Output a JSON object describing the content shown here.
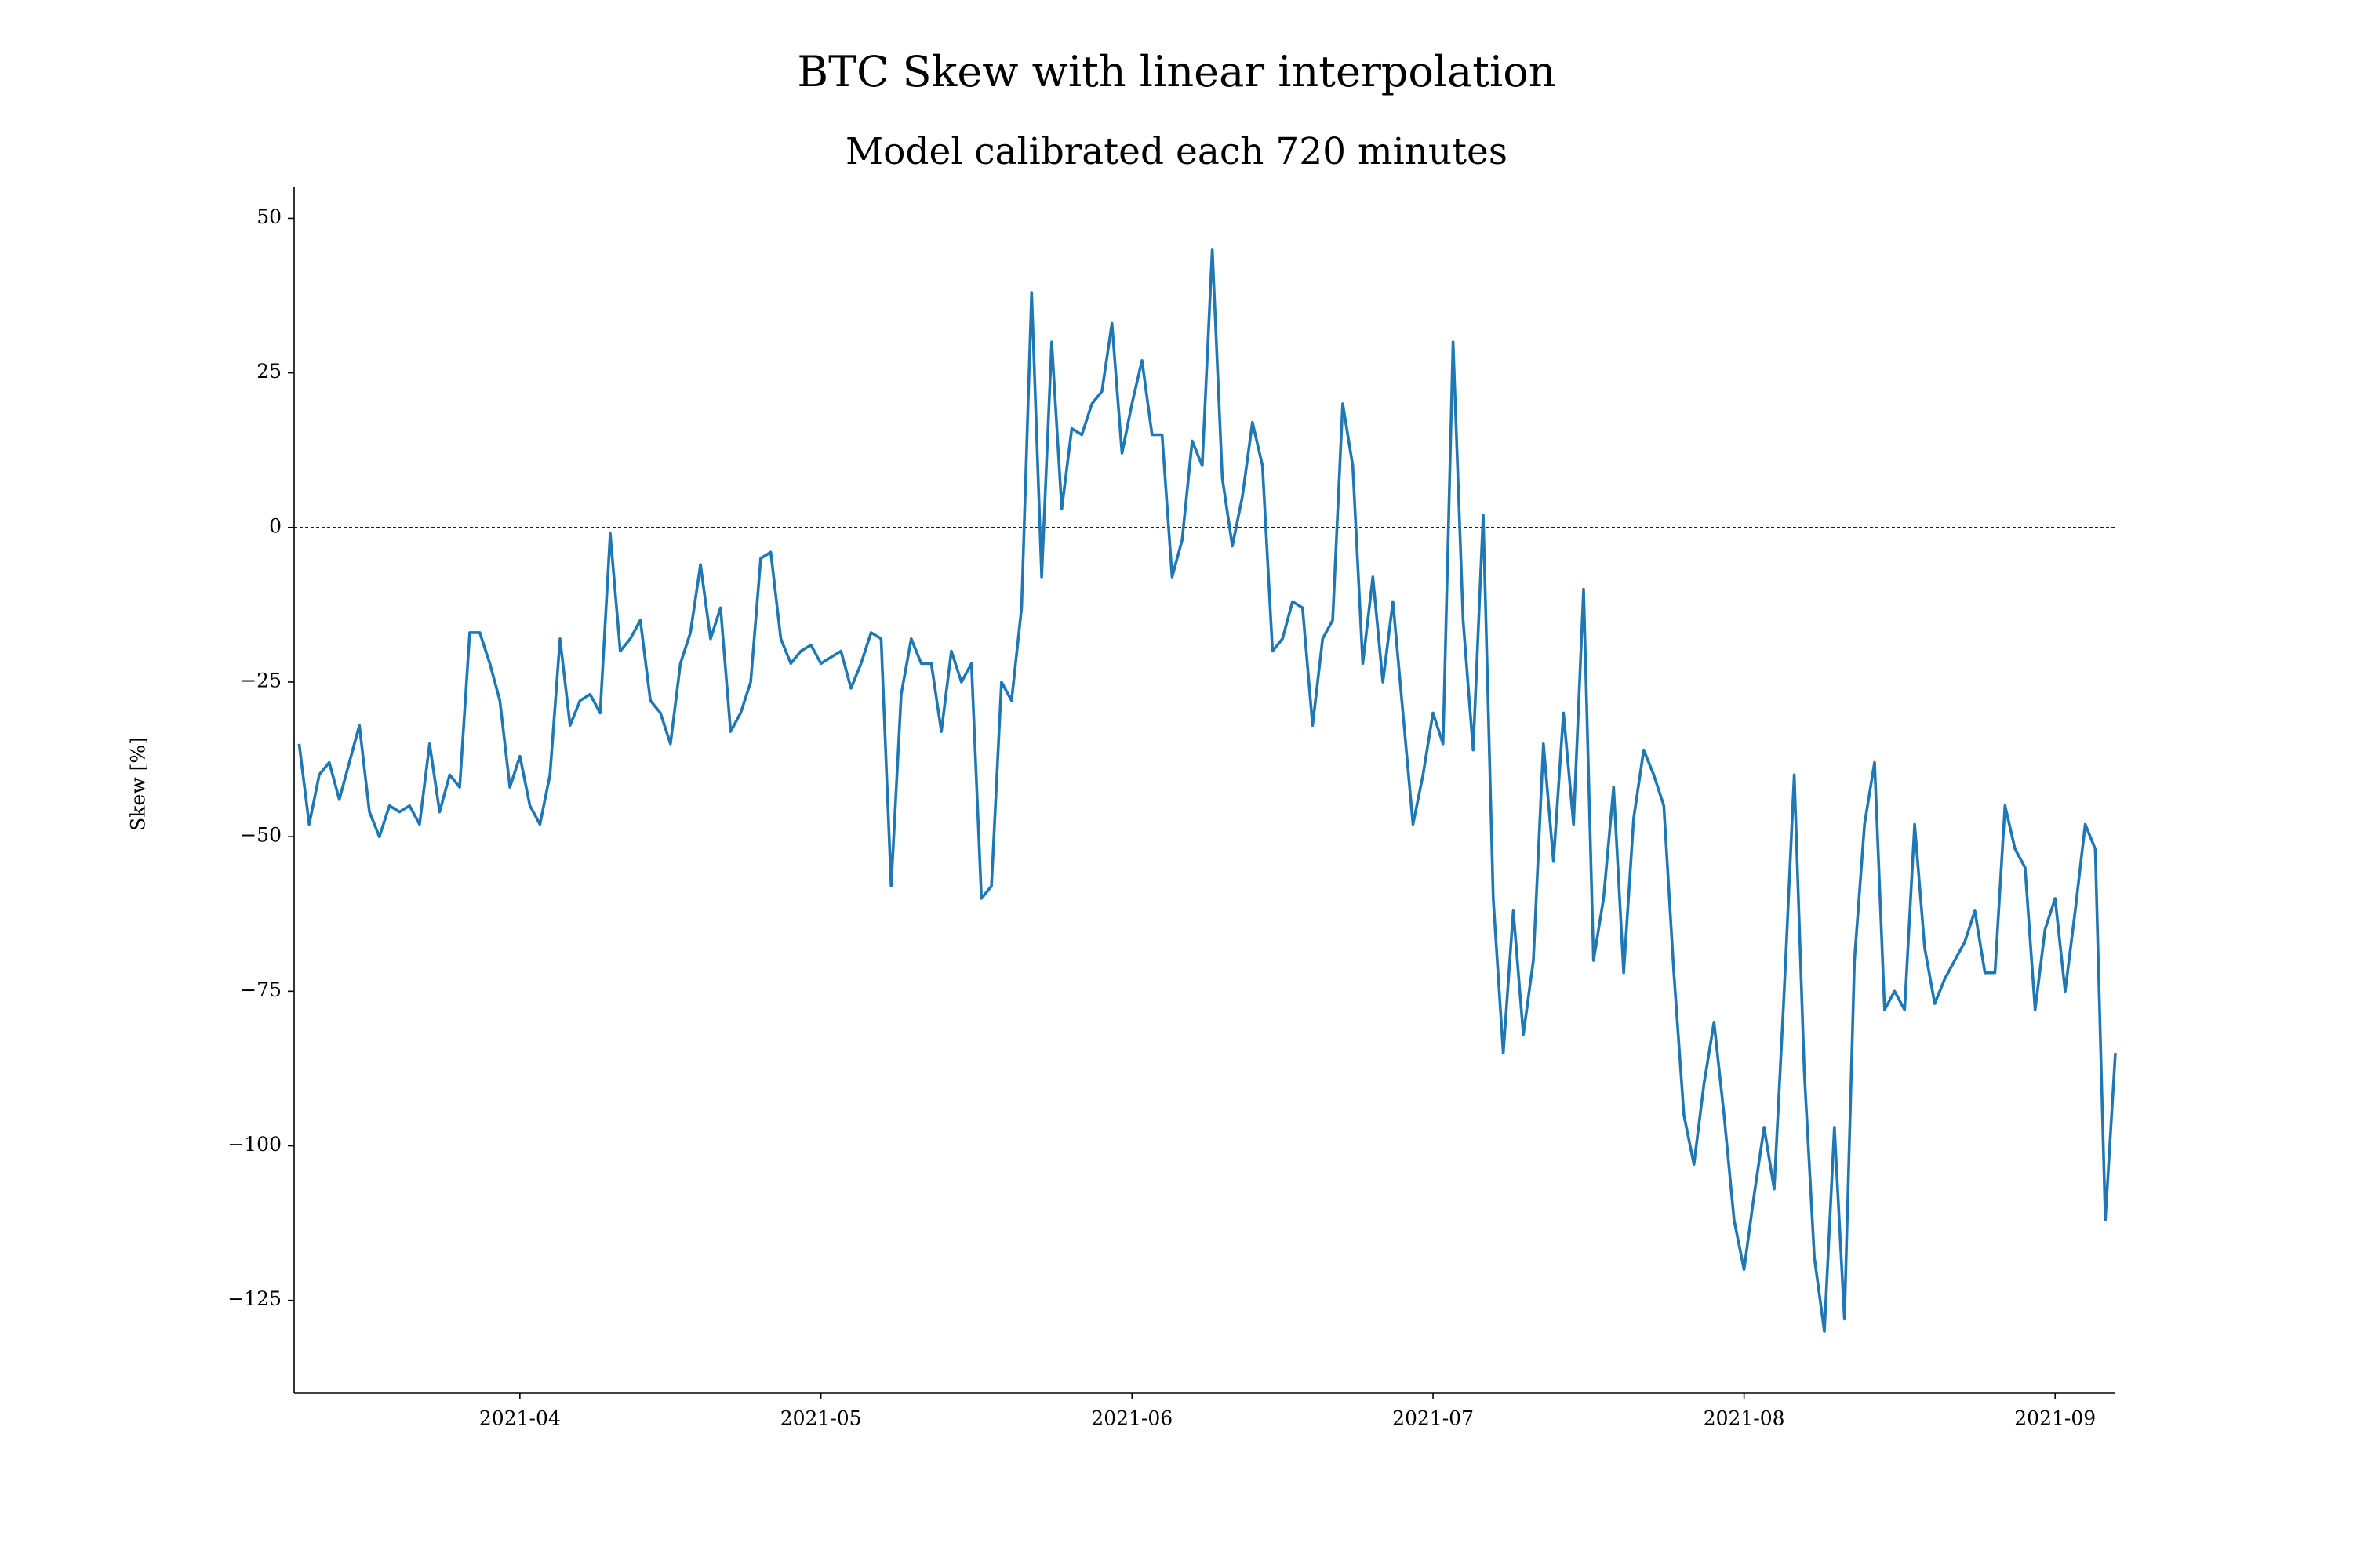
{
  "chart_data": {
    "type": "line",
    "title": "BTC Skew with linear interpolation",
    "subtitle": "Model calibrated each 720 minutes",
    "ylabel": "Skew [%]",
    "color": "#1f77b4",
    "hline": 0,
    "x": [
      69,
      70,
      71,
      72,
      73,
      74,
      75,
      76,
      77,
      78,
      79,
      80,
      81,
      82,
      83,
      84,
      85,
      86,
      87,
      88,
      89,
      90,
      91,
      92,
      93,
      94,
      95,
      96,
      97,
      98,
      99,
      100,
      101,
      102,
      103,
      104,
      105,
      106,
      107,
      108,
      109,
      110,
      111,
      112,
      113,
      114,
      115,
      116,
      117,
      118,
      119,
      120,
      121,
      122,
      123,
      124,
      125,
      126,
      127,
      128,
      129,
      130,
      131,
      132,
      133,
      134,
      135,
      136,
      137,
      138,
      139,
      140,
      141,
      142,
      143,
      144,
      145,
      146,
      147,
      148,
      149,
      150,
      151,
      152,
      153,
      154,
      155,
      156,
      157,
      158,
      159,
      160,
      161,
      162,
      163,
      164,
      165,
      166,
      167,
      168,
      169,
      170,
      171,
      172,
      173,
      174,
      175,
      176,
      177,
      178,
      179,
      180,
      181,
      182,
      183,
      184,
      185,
      186,
      187,
      188,
      189,
      190,
      191,
      192,
      193,
      194,
      195,
      196,
      197,
      198,
      199,
      200,
      201,
      202,
      203,
      204,
      205,
      206,
      207,
      208,
      209,
      210,
      211,
      212,
      213,
      214,
      215,
      216,
      217,
      218,
      219,
      220,
      221,
      222,
      223,
      224,
      225,
      226,
      227,
      228,
      229,
      230,
      231,
      232,
      233,
      234,
      235,
      236,
      237,
      238,
      239,
      240,
      241,
      242,
      243,
      244,
      245,
      246,
      247,
      248,
      249,
      250
    ],
    "values": [
      -35,
      -48,
      -40,
      -38,
      -44,
      -38,
      -32,
      -46,
      -50,
      -45,
      -46,
      -45,
      -48,
      -35,
      -46,
      -40,
      -42,
      -17,
      -17,
      -22,
      -28,
      -42,
      -37,
      -45,
      -48,
      -40,
      -18,
      -32,
      -28,
      -27,
      -30,
      -1,
      -20,
      -18,
      -15,
      -28,
      -30,
      -35,
      -22,
      -17,
      -6,
      -18,
      -13,
      -33,
      -30,
      -25,
      -5,
      -4,
      -18,
      -22,
      -20,
      -19,
      -22,
      -21,
      -20,
      -26,
      -22,
      -17,
      -18,
      -58,
      -27,
      -18,
      -22,
      -22,
      -33,
      -20,
      -25,
      -22,
      -60,
      -58,
      -25,
      -28,
      -13,
      38,
      -8,
      30,
      3,
      16,
      15,
      20,
      22,
      33,
      12,
      20,
      27,
      15,
      15,
      -8,
      -2,
      14,
      10,
      45,
      8,
      -3,
      5,
      17,
      10,
      -20,
      -18,
      -12,
      -13,
      -32,
      -18,
      -15,
      20,
      10,
      -22,
      -8,
      -25,
      -12,
      -30,
      -48,
      -40,
      -30,
      -35,
      30,
      -15,
      -36,
      2,
      -60,
      -85,
      -62,
      -82,
      -70,
      -35,
      -54,
      -30,
      -48,
      -10,
      -70,
      -60,
      -42,
      -72,
      -47,
      -36,
      -40,
      -45,
      -72,
      -95,
      -103,
      -90,
      -80,
      -95,
      -112,
      -120,
      -108,
      -97,
      -107,
      -75,
      -40,
      -88,
      -118,
      -130,
      -97,
      -128,
      -70,
      -48,
      -38,
      -78,
      -75,
      -78,
      -48,
      -68,
      -77,
      -73,
      -70,
      -67,
      -62,
      -72,
      -72,
      -45,
      -52,
      -55,
      -78,
      -65,
      -60,
      -75,
      -62,
      -48,
      -52,
      -112,
      -85
    ],
    "xlim": [
      68.5,
      250
    ],
    "xticks": [
      {
        "value": 91,
        "label": "2021-04"
      },
      {
        "value": 121,
        "label": "2021-05"
      },
      {
        "value": 152,
        "label": "2021-06"
      },
      {
        "value": 182,
        "label": "2021-07"
      },
      {
        "value": 213,
        "label": "2021-08"
      },
      {
        "value": 244,
        "label": "2021-09"
      }
    ],
    "ylim": [
      -140,
      55
    ],
    "yticks": [
      {
        "value": -125,
        "label": "−125"
      },
      {
        "value": -100,
        "label": "−100"
      },
      {
        "value": -75,
        "label": "−75"
      },
      {
        "value": -50,
        "label": "−50"
      },
      {
        "value": -25,
        "label": "−25"
      },
      0,
      25,
      50
    ]
  }
}
